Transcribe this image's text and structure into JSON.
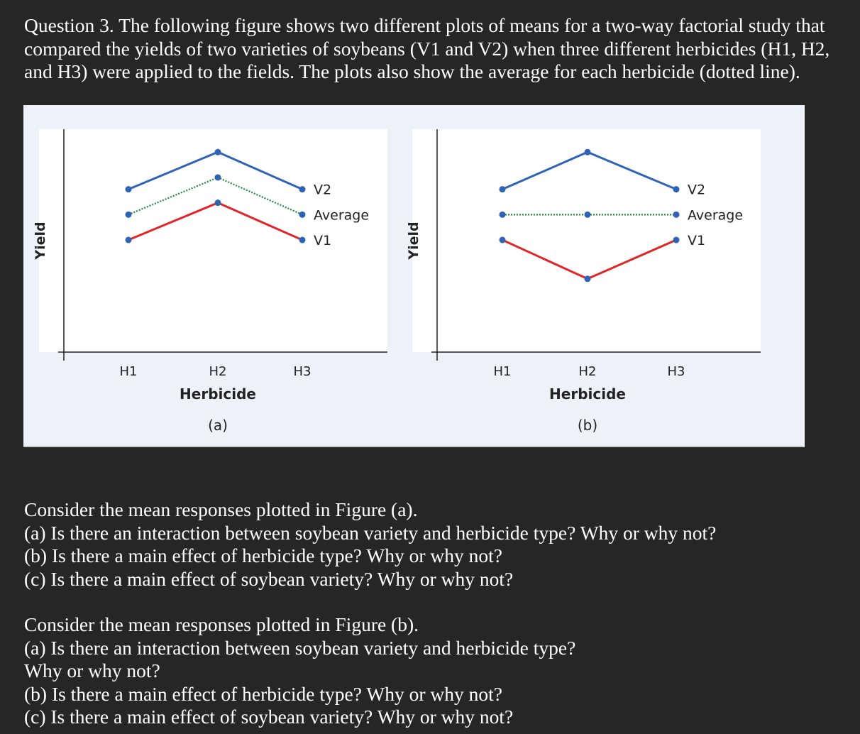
{
  "question": {
    "lines": [
      "Question 3. The following figure shows two different plots of means for a two-way factorial study that",
      "compared the yields of two varieties of soybeans (V1 and V2) when three different herbicides (H1, H2,",
      "and H3) were applied to the fields. The plots also show the average for each herbicide (dotted line)."
    ]
  },
  "part_a": {
    "lines": [
      "Consider the mean responses plotted in Figure (a).",
      "(a) Is there an interaction between soybean variety and herbicide type? Why or why not?",
      "(b) Is there a main effect of herbicide type? Why or why not?",
      "(c) Is there a main effect of soybean variety? Why or why not?"
    ]
  },
  "part_b": {
    "lines": [
      "Consider the mean responses plotted in Figure (b).",
      "(a) Is there an interaction between soybean variety and herbicide type?",
      "Why or why not?",
      "(b) Is there a main effect of herbicide type? Why or why not?",
      "(c) Is there a main effect of soybean variety? Why or why not?"
    ]
  },
  "colors": {
    "V2": "#2f63b5",
    "V1": "#e0262a",
    "Average": "#1f8a3a",
    "marker": "#2f63b5"
  },
  "chart_data": [
    {
      "type": "line",
      "caption": "(a)",
      "xlabel": "Herbicide",
      "ylabel": "Yield",
      "categories": [
        "H1",
        "H2",
        "H3"
      ],
      "ylim": [
        0,
        10
      ],
      "series": [
        {
          "name": "V2",
          "values": [
            7.2,
            9.4,
            7.2
          ],
          "style": "solid"
        },
        {
          "name": "Average",
          "values": [
            5.7,
            7.9,
            5.7
          ],
          "style": "dotted"
        },
        {
          "name": "V1",
          "values": [
            4.2,
            6.4,
            4.2
          ],
          "style": "solid"
        }
      ]
    },
    {
      "type": "line",
      "caption": "(b)",
      "xlabel": "Herbicide",
      "ylabel": "Yield",
      "categories": [
        "H1",
        "H2",
        "H3"
      ],
      "ylim": [
        0,
        10
      ],
      "series": [
        {
          "name": "V2",
          "values": [
            7.2,
            9.4,
            7.2
          ],
          "style": "solid"
        },
        {
          "name": "Average",
          "values": [
            5.7,
            5.7,
            5.7
          ],
          "style": "dotted"
        },
        {
          "name": "V1",
          "values": [
            4.2,
            1.9,
            4.2
          ],
          "style": "solid"
        }
      ]
    }
  ]
}
